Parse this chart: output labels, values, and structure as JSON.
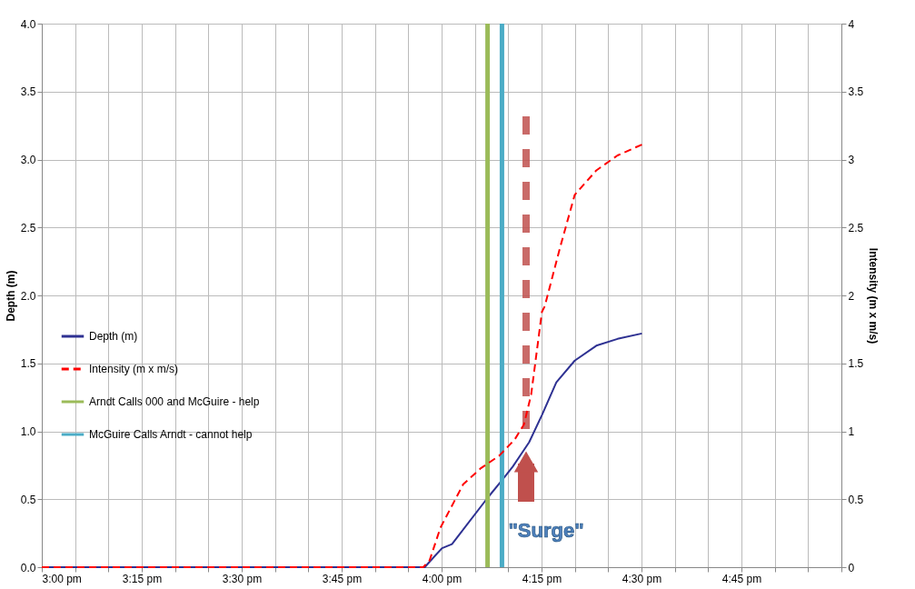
{
  "chart_data": {
    "type": "line",
    "ylabel": "Depth (m)",
    "y2label": "Intensity (m x m/s)",
    "series": [
      {
        "name": "Depth (m)",
        "color": "#2e3192",
        "line_style": "solid",
        "x": [
          15,
          15.958,
          15.97,
          16.001,
          16.026,
          16.047,
          16.115,
          16.151,
          16.178,
          16.219,
          16.251,
          16.287,
          16.333,
          16.387,
          16.44,
          16.501
        ],
        "values": [
          0,
          0,
          0.04,
          0.14,
          0.17,
          0.25,
          0.51,
          0.64,
          0.74,
          0.92,
          1.12,
          1.36,
          1.52,
          1.63,
          1.68,
          1.72
        ]
      },
      {
        "name": "Intensity (m x m/s)",
        "color": "#ff0000",
        "line_style": "dashed",
        "axis": "y2",
        "x": [
          15,
          15.954,
          15.97,
          15.997,
          16.054,
          16.099,
          16.144,
          16.183,
          16.206,
          16.224,
          16.251,
          16.258,
          16.297,
          16.333,
          16.387,
          16.44,
          16.501
        ],
        "values": [
          0,
          0,
          0.05,
          0.29,
          0.61,
          0.73,
          0.82,
          0.94,
          1.05,
          1.27,
          1.88,
          1.92,
          2.36,
          2.74,
          2.92,
          3.03,
          3.11
        ]
      },
      {
        "name": "Arndt Calls 000 and McGuire - help",
        "color": "#9bbb59",
        "line_style": "solid",
        "x": [
          16.115,
          16.115
        ],
        "values": [
          0,
          4
        ]
      },
      {
        "name": "McGuire Calls Arndt - cannot help",
        "color": "#4bacc6",
        "line_style": "solid",
        "x": [
          16.151,
          16.151
        ],
        "values": [
          0,
          4
        ]
      }
    ],
    "annotations": [
      "\"Surge\""
    ],
    "xlim": [
      15,
      17
    ],
    "xticks": [
      {
        "value": 15,
        "label": "3:00 pm"
      },
      {
        "value": 15.0833,
        "label": null
      },
      {
        "value": 15.1667,
        "label": null
      },
      {
        "value": 15.25,
        "label": "3:15 pm"
      },
      {
        "value": 15.3333,
        "label": null
      },
      {
        "value": 15.4167,
        "label": null
      },
      {
        "value": 15.5,
        "label": "3:30 pm"
      },
      {
        "value": 15.5833,
        "label": null
      },
      {
        "value": 15.6667,
        "label": null
      },
      {
        "value": 15.75,
        "label": "3:45 pm"
      },
      {
        "value": 15.8333,
        "label": null
      },
      {
        "value": 15.9167,
        "label": null
      },
      {
        "value": 16,
        "label": "4:00 pm"
      },
      {
        "value": 16.0833,
        "label": null
      },
      {
        "value": 16.1667,
        "label": null
      },
      {
        "value": 16.25,
        "label": "4:15 pm"
      },
      {
        "value": 16.3333,
        "label": null
      },
      {
        "value": 16.4167,
        "label": null
      },
      {
        "value": 16.5,
        "label": "4:30 pm"
      },
      {
        "value": 16.5833,
        "label": null
      },
      {
        "value": 16.6667,
        "label": null
      },
      {
        "value": 16.75,
        "label": "4:45 pm"
      },
      {
        "value": 16.8333,
        "label": null
      },
      {
        "value": 16.9167,
        "label": null
      },
      {
        "value": 17,
        "label": null
      }
    ],
    "ylim": [
      0,
      4
    ],
    "yticks": [
      {
        "value": 0,
        "label": "0.0"
      },
      0.5,
      {
        "value": 1,
        "label": "1.0"
      },
      1.5,
      {
        "value": 2,
        "label": "2.0"
      },
      2.5,
      {
        "value": 3,
        "label": "3.0"
      },
      3.5,
      {
        "value": 4,
        "label": "4.0"
      }
    ],
    "y2lim": [
      0,
      4
    ],
    "y2ticks": [
      0,
      0.5,
      1,
      1.5,
      2,
      2.5,
      3,
      3.5,
      4
    ],
    "grid": true,
    "legend": "left",
    "marker": "none"
  }
}
